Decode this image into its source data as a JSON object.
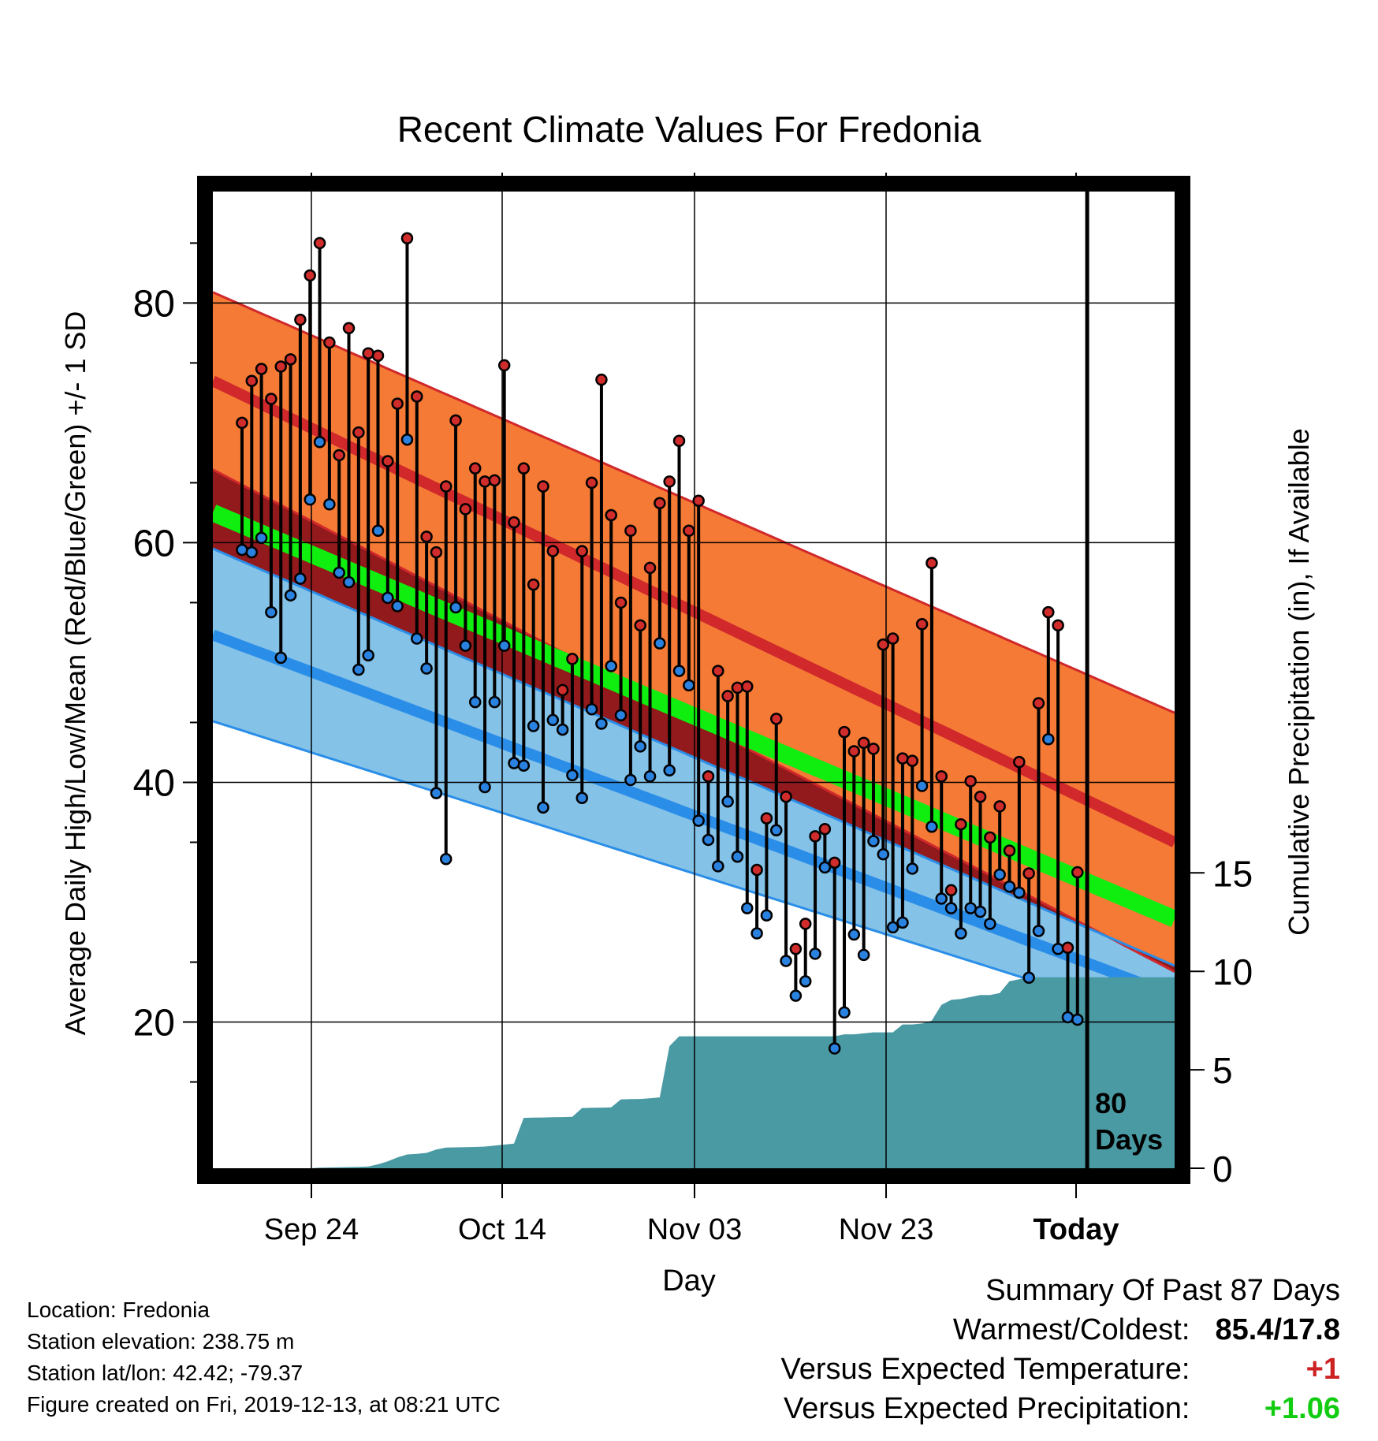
{
  "chart_data": {
    "type": "line",
    "title": "Recent Climate Values For Fredonia",
    "xlabel": "Day",
    "ylabel": "Average Daily High/Low/Mean (Red/Blue/Green) +/- 1 SD",
    "y2label": "Cumulative Precipitation (in), If Available",
    "x_tick_labels": [
      "Sep 24",
      "Oct 14",
      "Nov 03",
      "Nov 23",
      "Today"
    ],
    "y_ticks": [
      "20",
      "40",
      "60",
      "80"
    ],
    "y2_ticks": [
      "0",
      "5",
      "10",
      "15"
    ],
    "ylim": [
      7.8,
      89.3
    ],
    "y2lim": [
      0,
      49.6
    ],
    "days_visible": 100,
    "today_index": 90,
    "annotation_number": "80",
    "annotation_text": "Days",
    "colors": {
      "high_band": "#f47a35",
      "high_mean": "#d0282b",
      "low_band": "#84c2e8",
      "low_mean": "#2a8ee8",
      "mean_line": "#10ee10",
      "overlap": "#921a1c",
      "precip": "#4a9aa4",
      "high_dot": "#d02c2c",
      "low_dot": "#2a82e0"
    },
    "normals": {
      "high_mean": {
        "start": 73.5,
        "end": 35.0
      },
      "high_sd": {
        "start": 7.4,
        "end": 10.8
      },
      "low_mean": {
        "start": 52.3,
        "end": 22.2
      },
      "low_sd": {
        "start": 7.2,
        "end": 2.5
      },
      "mean": {
        "start": 62.5,
        "end": 28.6
      }
    },
    "series": [
      {
        "name": "High",
        "values": [
          70.0,
          73.5,
          74.5,
          72.0,
          74.7,
          75.3,
          78.6,
          82.3,
          85.0,
          76.7,
          67.3,
          77.9,
          69.2,
          75.8,
          75.6,
          66.8,
          71.6,
          85.4,
          72.2,
          60.5,
          59.2,
          64.7,
          70.2,
          62.8,
          66.2,
          65.1,
          65.2,
          74.8,
          61.7,
          66.2,
          56.5,
          64.7,
          59.3,
          47.7,
          50.3,
          59.3,
          65.0,
          73.6,
          62.3,
          55.0,
          61.0,
          53.1,
          57.9,
          63.3,
          65.1,
          68.5,
          61.0,
          63.5,
          40.5,
          49.3,
          47.2,
          47.9,
          48.0,
          32.7,
          37.0,
          45.3,
          38.8,
          26.1,
          28.2,
          35.5,
          36.1,
          33.3,
          44.2,
          42.6,
          43.3,
          42.8,
          51.5,
          52.0,
          42.0,
          41.8,
          53.2,
          58.3,
          40.5,
          31.0,
          36.5,
          40.1,
          38.8,
          35.4,
          38.0,
          34.3,
          41.7,
          32.4,
          46.6,
          54.2,
          53.1,
          26.2,
          32.5
        ]
      },
      {
        "name": "Low",
        "values": [
          59.4,
          59.2,
          60.4,
          54.2,
          50.4,
          55.6,
          57.0,
          63.6,
          68.4,
          63.2,
          57.5,
          56.7,
          49.4,
          50.6,
          61.0,
          55.4,
          54.7,
          68.6,
          52.0,
          49.5,
          39.1,
          33.6,
          54.6,
          51.4,
          46.7,
          39.6,
          46.7,
          51.4,
          41.6,
          41.4,
          44.7,
          37.9,
          45.2,
          44.4,
          40.6,
          38.7,
          46.1,
          44.9,
          49.7,
          45.6,
          40.2,
          43.0,
          40.5,
          51.6,
          41.0,
          49.3,
          48.1,
          36.8,
          35.2,
          33.0,
          38.4,
          33.8,
          29.5,
          27.4,
          28.9,
          36.0,
          25.1,
          22.2,
          23.4,
          25.7,
          32.9,
          17.8,
          20.8,
          27.3,
          25.6,
          35.1,
          34.0,
          27.9,
          28.3,
          32.8,
          39.7,
          36.3,
          30.3,
          29.5,
          27.4,
          29.5,
          29.2,
          28.2,
          32.3,
          31.3,
          30.8,
          23.7,
          27.6,
          43.6,
          26.1,
          20.4,
          20.2
        ]
      },
      {
        "name": "Cumulative Precipitation",
        "values": [
          0,
          0,
          0,
          0,
          0,
          0,
          0,
          0,
          0,
          0,
          0,
          0.03,
          0.04,
          0.05,
          0.06,
          0.07,
          0.09,
          0.2,
          0.35,
          0.55,
          0.7,
          0.73,
          0.78,
          0.95,
          1.05,
          1.06,
          1.07,
          1.08,
          1.1,
          1.15,
          1.2,
          1.25,
          2.56,
          2.57,
          2.58,
          2.59,
          2.6,
          2.61,
          3.06,
          3.07,
          3.08,
          3.09,
          3.5,
          3.51,
          3.52,
          3.55,
          3.6,
          6.2,
          6.7,
          6.7,
          6.7,
          6.7,
          6.7,
          6.7,
          6.7,
          6.7,
          6.7,
          6.7,
          6.7,
          6.7,
          6.7,
          6.7,
          6.7,
          6.7,
          6.7,
          6.8,
          6.8,
          6.85,
          6.9,
          6.9,
          6.9,
          7.3,
          7.3,
          7.35,
          7.5,
          8.3,
          8.55,
          8.6,
          8.7,
          8.8,
          8.8,
          8.9,
          9.5,
          9.6,
          9.7,
          9.7,
          9.7,
          9.7,
          9.7,
          9.7,
          9.7,
          9.7,
          9.7,
          9.7,
          9.7,
          9.7,
          9.7,
          9.7,
          9.7,
          9.7
        ]
      }
    ]
  },
  "info": {
    "location": "Location: Fredonia",
    "elevation": "Station elevation: 238.75 m",
    "latlon": "Station lat/lon: 42.42; -79.37",
    "created": "Figure created on Fri, 2019-12-13, at 08:21 UTC"
  },
  "summary": {
    "heading": "Summary Of Past 87 Days",
    "warm_label": "Warmest/Coldest:",
    "warm_value": "85.4/17.8",
    "temp_label": "Versus Expected Temperature:",
    "temp_value": "+1",
    "precip_label": "Versus Expected Precipitation:",
    "precip_value": "+1.06"
  }
}
